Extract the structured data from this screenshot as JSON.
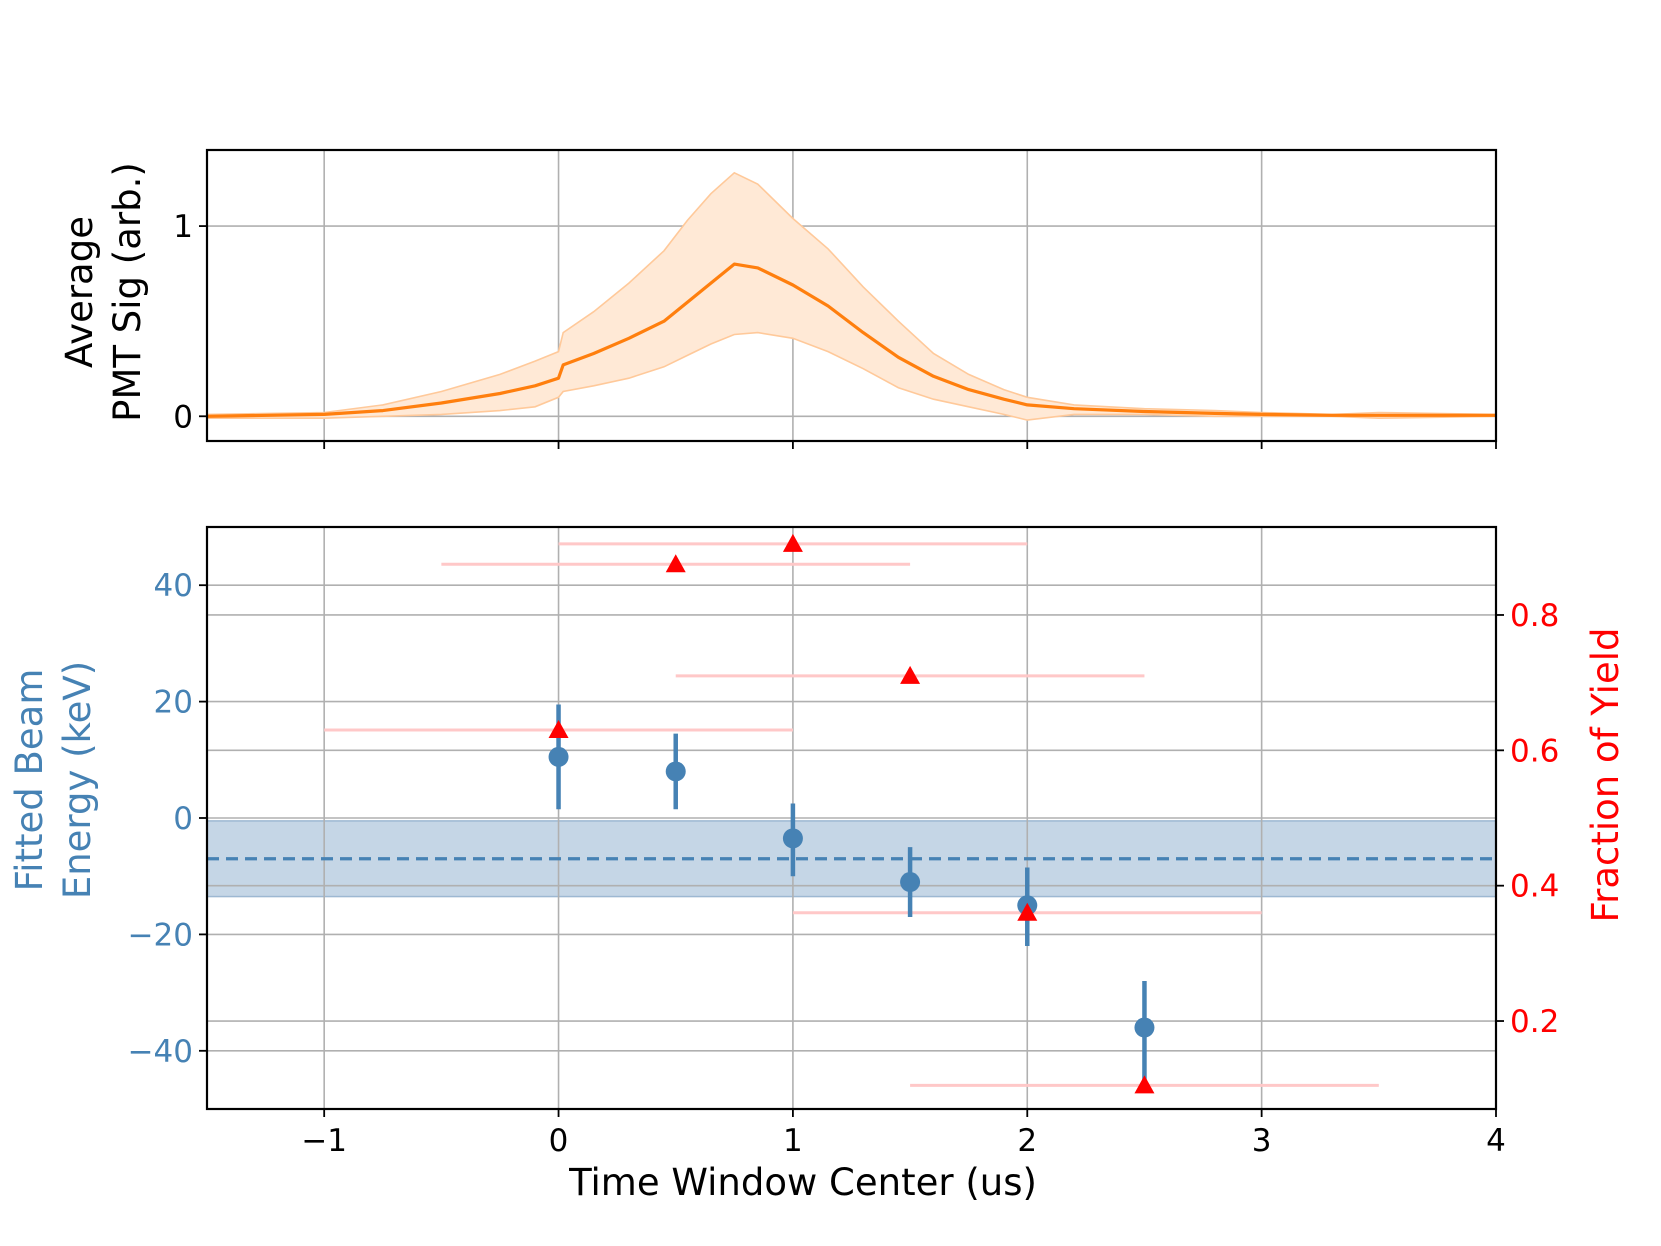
{
  "colors": {
    "pmt_line": "#ff7f0e",
    "pmt_band": "#ffe9d6",
    "pmt_band_edge": "#ffc99a",
    "energy": "#4682b4",
    "energy_band": "#c5d6e6",
    "yield": "#ff0000",
    "yield_xerr": "#ffc8c8",
    "grid": "#b0b0b0",
    "axis_text": "#000000"
  },
  "chart_data": [
    {
      "id": "pmt",
      "type": "line",
      "title": "",
      "ylabel_line1": "Average",
      "ylabel_line2": "PMT Sig (arb.)",
      "xlim": [
        -1.5,
        4
      ],
      "ylim": [
        -0.13,
        1.4
      ],
      "x_ticks": [
        -1,
        0,
        1,
        2,
        3,
        4
      ],
      "y_ticks": [
        0,
        1
      ],
      "y_tick_labels": [
        "0",
        "1"
      ],
      "grid": true,
      "series": [
        {
          "role": "mean",
          "x": [
            -1.5,
            -1.0,
            -0.75,
            -0.5,
            -0.25,
            -0.1,
            0.0,
            0.02,
            0.15,
            0.3,
            0.45,
            0.55,
            0.65,
            0.75,
            0.85,
            1.0,
            1.15,
            1.3,
            1.45,
            1.6,
            1.75,
            1.9,
            2.0,
            2.2,
            2.5,
            2.8,
            3.0,
            3.3,
            3.5,
            4.0
          ],
          "y": [
            0.0,
            0.01,
            0.03,
            0.07,
            0.12,
            0.16,
            0.2,
            0.27,
            0.33,
            0.41,
            0.5,
            0.6,
            0.7,
            0.8,
            0.78,
            0.69,
            0.58,
            0.44,
            0.31,
            0.21,
            0.14,
            0.09,
            0.06,
            0.04,
            0.025,
            0.015,
            0.01,
            0.005,
            0.005,
            0.005
          ]
        },
        {
          "role": "upper",
          "x": [
            -1.5,
            -1.0,
            -0.75,
            -0.5,
            -0.25,
            -0.1,
            0.0,
            0.02,
            0.15,
            0.3,
            0.45,
            0.55,
            0.65,
            0.75,
            0.85,
            1.0,
            1.15,
            1.3,
            1.45,
            1.6,
            1.75,
            1.9,
            2.0,
            2.2,
            2.5,
            2.8,
            3.0,
            3.3,
            3.5,
            4.0
          ],
          "y": [
            0.01,
            0.02,
            0.06,
            0.13,
            0.22,
            0.29,
            0.34,
            0.44,
            0.55,
            0.7,
            0.87,
            1.03,
            1.17,
            1.28,
            1.22,
            1.04,
            0.88,
            0.68,
            0.5,
            0.33,
            0.22,
            0.14,
            0.1,
            0.06,
            0.04,
            0.03,
            0.02,
            0.01,
            0.02,
            0.01
          ]
        },
        {
          "role": "lower",
          "x": [
            -1.5,
            -1.0,
            -0.75,
            -0.5,
            -0.25,
            -0.1,
            0.0,
            0.02,
            0.15,
            0.3,
            0.45,
            0.55,
            0.65,
            0.75,
            0.85,
            1.0,
            1.15,
            1.3,
            1.45,
            1.6,
            1.75,
            1.9,
            2.0,
            2.2,
            2.5,
            2.8,
            3.0,
            3.3,
            3.5,
            4.0
          ],
          "y": [
            -0.01,
            -0.01,
            0.0,
            0.01,
            0.03,
            0.05,
            0.1,
            0.13,
            0.16,
            0.2,
            0.26,
            0.32,
            0.38,
            0.43,
            0.44,
            0.41,
            0.34,
            0.25,
            0.15,
            0.09,
            0.05,
            0.01,
            -0.02,
            0.01,
            0.01,
            0.0,
            0.0,
            0.0,
            -0.01,
            0.0
          ]
        }
      ]
    },
    {
      "id": "energy",
      "type": "scatter",
      "title": "",
      "xlabel": "Time Window Center (us)",
      "ylabel_left_line1": "Fitted Beam",
      "ylabel_left_line2": "Energy (keV)",
      "ylabel_right": "Fraction of Yield",
      "xlim": [
        -1.5,
        4
      ],
      "x_ticks": [
        -1,
        0,
        1,
        2,
        3,
        4
      ],
      "x_tick_labels": [
        "−1",
        "0",
        "1",
        "2",
        "3",
        "4"
      ],
      "ylim_left": [
        -50,
        50
      ],
      "y_ticks_left": [
        -40,
        -20,
        0,
        20,
        40
      ],
      "y_tick_labels_left": [
        "−40",
        "−20",
        "0",
        "20",
        "40"
      ],
      "ylim_right": [
        0.07,
        0.93
      ],
      "y_ticks_right": [
        0.2,
        0.4,
        0.6,
        0.8
      ],
      "y_tick_labels_right": [
        "0.2",
        "0.4",
        "0.6",
        "0.8"
      ],
      "grid": true,
      "energy_points": {
        "x": [
          0,
          0.5,
          1,
          1.5,
          2,
          2.5
        ],
        "y": [
          10.5,
          8,
          -3.5,
          -11,
          -15,
          -36
        ],
        "yerr_low": [
          9,
          6.5,
          6.5,
          6,
          7,
          9
        ],
        "yerr_high": [
          9,
          6.5,
          6,
          6,
          6.5,
          8
        ]
      },
      "energy_mean": -7,
      "energy_band": [
        -13.5,
        -0.5
      ],
      "yield_points": {
        "x": [
          0,
          0.5,
          1,
          1.5,
          2,
          2.5
        ],
        "y": [
          0.63,
          0.875,
          0.905,
          0.71,
          0.36,
          0.105
        ],
        "xerr": [
          1,
          1,
          1,
          1,
          1,
          1
        ]
      }
    }
  ]
}
